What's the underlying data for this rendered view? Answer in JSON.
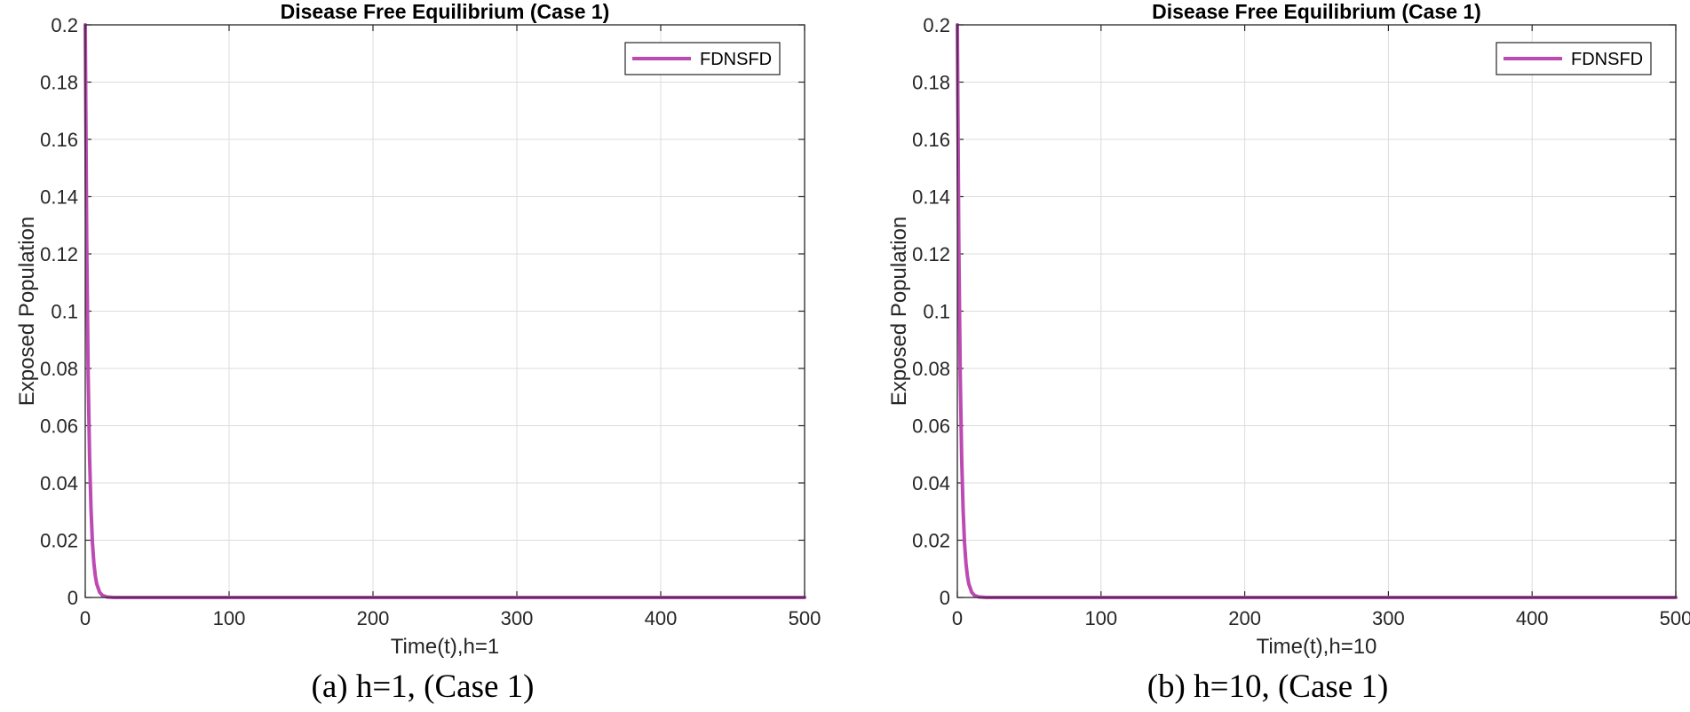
{
  "chart_data": [
    {
      "type": "line",
      "title": "Disease Free Equilibrium (Case 1)",
      "xlabel": "Time(t),h=1",
      "ylabel": "Exposed Population",
      "xlim": [
        0,
        500
      ],
      "ylim": [
        0,
        0.2
      ],
      "xticks": [
        0,
        100,
        200,
        300,
        400,
        500
      ],
      "xtick_labels": [
        "0",
        "100",
        "200",
        "300",
        "400",
        "500"
      ],
      "yticks": [
        0,
        0.02,
        0.04,
        0.06,
        0.08,
        0.1,
        0.12,
        0.14,
        0.16,
        0.18,
        0.2
      ],
      "ytick_labels": [
        "0",
        "0.02",
        "0.04",
        "0.06",
        "0.08",
        "0.1",
        "0.12",
        "0.14",
        "0.16",
        "0.18",
        "0.2"
      ],
      "grid": true,
      "legend_position": "top-right",
      "series": [
        {
          "name": "FDNSFD",
          "color": "#BD4AB3",
          "x": [
            0,
            1,
            2,
            3,
            4,
            5,
            6,
            7,
            8,
            10,
            12,
            15,
            20,
            50,
            100,
            200,
            300,
            400,
            500
          ],
          "y": [
            0.2,
            0.125,
            0.078,
            0.049,
            0.031,
            0.019,
            0.012,
            0.0075,
            0.0047,
            0.0018,
            0.0007,
            0.0002,
            0.0,
            0.0,
            0.0,
            0.0,
            0.0,
            0.0,
            0.0
          ]
        }
      ],
      "caption": "(a) h=1, (Case 1)"
    },
    {
      "type": "line",
      "title": "Disease Free Equilibrium (Case 1)",
      "xlabel": "Time(t),h=10",
      "ylabel": "Exposed Population",
      "xlim": [
        0,
        500
      ],
      "ylim": [
        0,
        0.2
      ],
      "xticks": [
        0,
        100,
        200,
        300,
        400,
        500
      ],
      "xtick_labels": [
        "0",
        "100",
        "200",
        "300",
        "400",
        "500"
      ],
      "yticks": [
        0,
        0.02,
        0.04,
        0.06,
        0.08,
        0.1,
        0.12,
        0.14,
        0.16,
        0.18,
        0.2
      ],
      "ytick_labels": [
        "0",
        "0.02",
        "0.04",
        "0.06",
        "0.08",
        "0.1",
        "0.12",
        "0.14",
        "0.16",
        "0.18",
        "0.2"
      ],
      "grid": true,
      "legend_position": "top-right",
      "series": [
        {
          "name": "FDNSFD",
          "color": "#BD4AB3",
          "x": [
            0,
            1,
            2,
            3,
            4,
            5,
            6,
            7,
            8,
            10,
            12,
            15,
            20,
            50,
            100,
            200,
            300,
            400,
            500
          ],
          "y": [
            0.2,
            0.125,
            0.078,
            0.049,
            0.031,
            0.019,
            0.012,
            0.0075,
            0.0047,
            0.0018,
            0.0007,
            0.0002,
            0.0,
            0.0,
            0.0,
            0.0,
            0.0,
            0.0,
            0.0
          ]
        }
      ],
      "caption": "(b) h=10, (Case 1)"
    }
  ]
}
